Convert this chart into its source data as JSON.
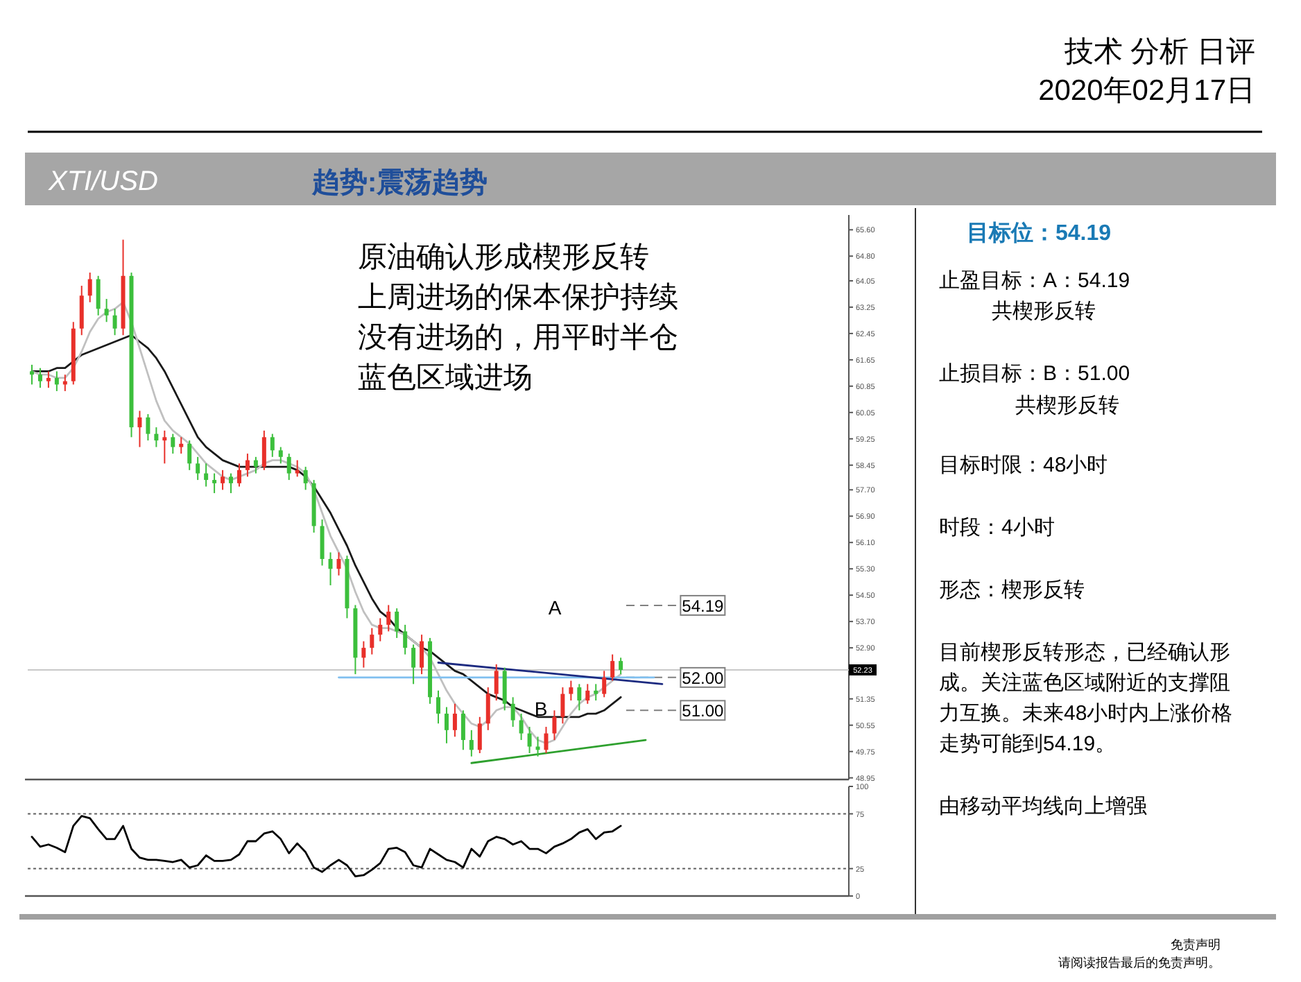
{
  "chart_data": [
    {
      "type": "candlestick",
      "categories": [
        null,
        null,
        null,
        null,
        null,
        null,
        null,
        null,
        null,
        null,
        null,
        null,
        null,
        null,
        null,
        null,
        null,
        null,
        null,
        null,
        null,
        null,
        null,
        null,
        null,
        null,
        null,
        null,
        null,
        null,
        null,
        null,
        null,
        null,
        null,
        null,
        null,
        null,
        null,
        null,
        null,
        null,
        null,
        null,
        null,
        null,
        null,
        null,
        null,
        null,
        null,
        null,
        null,
        null,
        null,
        null,
        null,
        null,
        null,
        null,
        null,
        null,
        null,
        null,
        null,
        null,
        null,
        null,
        null,
        null,
        null,
        null,
        null,
        null,
        null,
        null,
        null,
        null,
        null,
        null,
        null,
        null,
        null,
        null,
        null,
        null,
        null,
        null,
        null,
        null,
        null,
        null,
        null,
        null,
        null,
        null,
        null,
        null,
        null
      ],
      "ohlc": [
        [
          61.3,
          61.5,
          60.9,
          61.2
        ],
        [
          61.2,
          61.4,
          60.8,
          61.0
        ],
        [
          61.0,
          61.3,
          60.8,
          61.1
        ],
        [
          61.1,
          61.3,
          60.7,
          60.9
        ],
        [
          60.9,
          61.2,
          60.7,
          61.0
        ],
        [
          61.0,
          62.8,
          60.9,
          62.6
        ],
        [
          62.6,
          63.9,
          62.4,
          63.6
        ],
        [
          63.6,
          64.3,
          63.4,
          64.1
        ],
        [
          64.1,
          64.2,
          63.0,
          63.2
        ],
        [
          63.2,
          63.5,
          62.8,
          63.0
        ],
        [
          63.0,
          63.2,
          62.4,
          62.6
        ],
        [
          62.6,
          65.3,
          62.4,
          64.2
        ],
        [
          64.2,
          64.3,
          59.3,
          59.6
        ],
        [
          59.6,
          60.1,
          59.0,
          59.9
        ],
        [
          59.9,
          60.0,
          59.2,
          59.4
        ],
        [
          59.4,
          59.6,
          59.0,
          59.2
        ],
        [
          59.2,
          59.5,
          58.5,
          59.3
        ],
        [
          59.3,
          59.4,
          58.8,
          59.0
        ],
        [
          59.0,
          59.3,
          58.8,
          59.1
        ],
        [
          59.1,
          59.2,
          58.3,
          58.5
        ],
        [
          58.5,
          58.7,
          58.0,
          58.2
        ],
        [
          58.2,
          58.5,
          57.8,
          58.0
        ],
        [
          58.0,
          58.2,
          57.6,
          57.9
        ],
        [
          57.9,
          58.3,
          57.7,
          58.1
        ],
        [
          58.1,
          58.2,
          57.6,
          57.9
        ],
        [
          57.9,
          58.5,
          57.8,
          58.3
        ],
        [
          58.3,
          58.8,
          58.1,
          58.6
        ],
        [
          58.6,
          58.7,
          58.2,
          58.4
        ],
        [
          58.4,
          59.5,
          58.3,
          59.3
        ],
        [
          59.3,
          59.4,
          58.7,
          58.9
        ],
        [
          58.9,
          59.0,
          58.5,
          58.7
        ],
        [
          58.7,
          58.8,
          58.0,
          58.2
        ],
        [
          58.2,
          58.6,
          58.1,
          58.3
        ],
        [
          58.3,
          58.4,
          57.7,
          57.9
        ],
        [
          57.9,
          58.0,
          56.4,
          56.6
        ],
        [
          56.6,
          56.8,
          55.4,
          55.6
        ],
        [
          55.6,
          55.8,
          54.8,
          55.3
        ],
        [
          55.3,
          55.8,
          55.1,
          55.6
        ],
        [
          55.6,
          55.7,
          53.8,
          54.1
        ],
        [
          54.1,
          54.2,
          52.1,
          52.6
        ],
        [
          52.6,
          53.1,
          52.3,
          52.9
        ],
        [
          52.9,
          53.5,
          52.7,
          53.3
        ],
        [
          53.3,
          53.8,
          53.1,
          53.6
        ],
        [
          53.6,
          54.2,
          53.4,
          54.0
        ],
        [
          54.0,
          54.1,
          53.2,
          53.4
        ],
        [
          53.4,
          53.6,
          52.7,
          52.9
        ],
        [
          52.9,
          53.0,
          51.8,
          52.3
        ],
        [
          52.3,
          53.3,
          52.1,
          53.1
        ],
        [
          53.1,
          53.2,
          51.2,
          51.4
        ],
        [
          51.4,
          51.6,
          50.6,
          50.9
        ],
        [
          50.9,
          51.1,
          50.0,
          50.4
        ],
        [
          50.4,
          51.2,
          50.2,
          50.9
        ],
        [
          50.9,
          51.0,
          49.8,
          50.1
        ],
        [
          50.1,
          50.4,
          49.6,
          49.8
        ],
        [
          49.8,
          50.8,
          49.7,
          50.6
        ],
        [
          50.6,
          51.7,
          50.4,
          51.5
        ],
        [
          51.5,
          52.4,
          51.3,
          52.2
        ],
        [
          52.2,
          52.3,
          51.0,
          51.2
        ],
        [
          51.2,
          51.4,
          50.5,
          50.7
        ],
        [
          50.7,
          50.9,
          50.1,
          50.3
        ],
        [
          50.3,
          50.5,
          49.7,
          49.9
        ],
        [
          49.9,
          50.2,
          49.6,
          49.8
        ],
        [
          49.8,
          50.5,
          49.7,
          50.3
        ],
        [
          50.3,
          51.0,
          50.1,
          50.8
        ],
        [
          50.8,
          51.7,
          50.6,
          51.5
        ],
        [
          51.5,
          51.9,
          51.3,
          51.7
        ],
        [
          51.7,
          51.8,
          51.0,
          51.3
        ],
        [
          51.3,
          51.8,
          51.2,
          51.6
        ],
        [
          51.6,
          51.8,
          51.3,
          51.5
        ],
        [
          51.5,
          52.2,
          51.4,
          52.0
        ],
        [
          52.0,
          52.7,
          51.9,
          52.5
        ],
        [
          52.5,
          52.6,
          52.1,
          52.23
        ],
        null,
        null,
        null,
        null,
        null,
        null,
        null,
        null,
        null,
        null,
        null,
        null,
        null,
        null,
        null,
        null,
        null,
        null,
        null,
        null,
        null,
        null,
        null,
        null,
        null,
        null,
        null
      ],
      "series": [
        {
          "type": "line",
          "color": "#1a1a1a",
          "values": [
            61.3,
            61.3,
            61.3,
            61.4,
            61.4,
            61.6,
            61.8,
            61.9,
            62.0,
            62.1,
            62.2,
            62.3,
            62.4,
            62.2,
            62.0,
            61.7,
            61.3,
            60.8,
            60.3,
            59.8,
            59.3,
            59.0,
            58.8,
            58.6,
            58.5,
            58.4,
            58.4,
            58.4,
            58.4,
            58.4,
            58.4,
            58.4,
            58.3,
            58.1,
            57.8,
            57.4,
            57.0,
            56.5,
            56.0,
            55.4,
            54.9,
            54.4,
            54.0,
            53.8,
            53.5,
            53.3,
            53.1,
            52.9,
            52.8,
            52.6,
            52.4,
            52.2,
            52.1,
            51.9,
            51.7,
            51.5,
            51.4,
            51.3,
            51.1,
            51.0,
            50.9,
            50.8,
            50.8,
            50.8,
            50.8,
            50.8,
            50.8,
            50.9,
            50.9,
            51.0,
            51.2,
            51.4,
            null,
            null,
            null,
            null,
            null,
            null,
            null,
            null,
            null,
            null,
            null,
            null,
            null,
            null,
            null,
            null,
            null,
            null,
            null,
            null,
            null,
            null,
            null,
            null,
            null,
            null,
            null
          ]
        },
        {
          "type": "line",
          "color": "#c0c0c0",
          "values": [
            61.3,
            61.2,
            61.2,
            61.1,
            61.1,
            61.4,
            61.9,
            62.5,
            62.9,
            63.1,
            63.2,
            63.4,
            62.8,
            62.0,
            61.2,
            60.4,
            59.8,
            59.5,
            59.3,
            59.1,
            58.8,
            58.5,
            58.3,
            58.1,
            58.0,
            58.1,
            58.2,
            58.3,
            58.5,
            58.6,
            58.6,
            58.5,
            58.4,
            58.2,
            57.7,
            57.0,
            56.3,
            55.8,
            55.3,
            54.6,
            54.0,
            53.6,
            53.5,
            53.5,
            53.4,
            53.3,
            53.1,
            52.9,
            52.6,
            52.1,
            51.6,
            51.2,
            50.9,
            50.6,
            50.5,
            50.7,
            51.0,
            51.1,
            51.1,
            50.8,
            50.4,
            50.1,
            50.0,
            50.1,
            50.5,
            50.9,
            51.2,
            51.4,
            51.5,
            51.7,
            51.9,
            52.1,
            null,
            null,
            null,
            null,
            null,
            null,
            null,
            null,
            null,
            null,
            null,
            null,
            null,
            null,
            null,
            null,
            null,
            null,
            null,
            null,
            null,
            null,
            null,
            null,
            null,
            null,
            null
          ]
        },
        {
          "type": "line",
          "color": "#7fbfef",
          "values": [
            null,
            null,
            null,
            null,
            null,
            null,
            null,
            null,
            null,
            null,
            null,
            null,
            null,
            null,
            null,
            null,
            null,
            null,
            null,
            null,
            null,
            null,
            null,
            null,
            null,
            null,
            null,
            null,
            null,
            null,
            null,
            null,
            null,
            null,
            null,
            null,
            null,
            52.0,
            null,
            null,
            null,
            null,
            null,
            null,
            null,
            null,
            null,
            null,
            null,
            null,
            null,
            null,
            null,
            null,
            null,
            null,
            null,
            null,
            null,
            null,
            null,
            null,
            null,
            null,
            null,
            null,
            null,
            null,
            null,
            null,
            null,
            null,
            null,
            null,
            null,
            52.0,
            null,
            null,
            null,
            null,
            null,
            null,
            null,
            null,
            null,
            null,
            null,
            null,
            null,
            null,
            null,
            null,
            null,
            null,
            null,
            null,
            null,
            null,
            null
          ]
        },
        {
          "type": "line",
          "color": "#1c2a80",
          "values": [
            null,
            null,
            null,
            null,
            null,
            null,
            null,
            null,
            null,
            null,
            null,
            null,
            null,
            null,
            null,
            null,
            null,
            null,
            null,
            null,
            null,
            null,
            null,
            null,
            null,
            null,
            null,
            null,
            null,
            null,
            null,
            null,
            null,
            null,
            null,
            null,
            null,
            null,
            null,
            null,
            null,
            null,
            null,
            null,
            null,
            null,
            null,
            null,
            null,
            52.45,
            null,
            null,
            null,
            null,
            null,
            null,
            null,
            null,
            null,
            null,
            null,
            null,
            null,
            null,
            null,
            null,
            null,
            null,
            null,
            null,
            null,
            null,
            null,
            null,
            null,
            null,
            51.8,
            null,
            null,
            null,
            null,
            null,
            null,
            null,
            null,
            null,
            null,
            null,
            null,
            null,
            null,
            null,
            null,
            null,
            null,
            null,
            null,
            null,
            null
          ]
        },
        {
          "type": "line",
          "color": "#2ea02e",
          "values": [
            null,
            null,
            null,
            null,
            null,
            null,
            null,
            null,
            null,
            null,
            null,
            null,
            null,
            null,
            null,
            null,
            null,
            null,
            null,
            null,
            null,
            null,
            null,
            null,
            null,
            null,
            null,
            null,
            null,
            null,
            null,
            null,
            null,
            null,
            null,
            null,
            null,
            null,
            null,
            null,
            null,
            null,
            null,
            null,
            null,
            null,
            null,
            null,
            null,
            null,
            null,
            null,
            null,
            49.4,
            null,
            null,
            null,
            null,
            null,
            null,
            null,
            null,
            null,
            null,
            null,
            null,
            null,
            null,
            null,
            null,
            null,
            null,
            null,
            null,
            50.1,
            null,
            null,
            null,
            null,
            null,
            null,
            null,
            null,
            null,
            null,
            null,
            null,
            null,
            null,
            null,
            null,
            null,
            null,
            null,
            null,
            null,
            null,
            null,
            null
          ]
        }
      ],
      "ylim": [
        48.9,
        66.05
      ],
      "yticks": [
        {
          "value": 65.6,
          "label": "65.60"
        },
        {
          "value": 64.8,
          "label": "64.80"
        },
        {
          "value": 64.05,
          "label": "64.05"
        },
        {
          "value": 63.25,
          "label": "63.25"
        },
        {
          "value": 62.45,
          "label": "62.45"
        },
        {
          "value": 61.65,
          "label": "61.65"
        },
        {
          "value": 60.85,
          "label": "60.85"
        },
        {
          "value": 60.05,
          "label": "60.05"
        },
        {
          "value": 59.25,
          "label": "59.25"
        },
        {
          "value": 58.45,
          "label": "58.45"
        },
        {
          "value": 57.7,
          "label": "57.70"
        },
        {
          "value": 56.9,
          "label": "56.90"
        },
        {
          "value": 56.1,
          "label": "56.10"
        },
        {
          "value": 55.3,
          "label": "55.30"
        },
        {
          "value": 54.5,
          "label": "54.50"
        },
        {
          "value": 53.7,
          "label": "53.70"
        },
        {
          "value": 52.9,
          "label": "52.90"
        },
        {
          "value": 51.35,
          "label": "51.35"
        },
        {
          "value": 50.55,
          "label": "50.55"
        },
        {
          "value": 49.75,
          "label": "49.75"
        },
        {
          "value": 48.95,
          "label": "48.95"
        }
      ],
      "tick_labels": "y",
      "ref_lines": [
        {
          "axis": "y",
          "value": 52.23,
          "label": "52.23",
          "color": "#c8c8c8",
          "line_style": "solid"
        },
        {
          "axis": "y",
          "value": 54.19,
          "label": "54.19",
          "color": "#808080",
          "line_style": "dashed"
        },
        {
          "axis": "y",
          "value": 52.0,
          "label": "52.00",
          "color": "#808080",
          "line_style": "dashed"
        },
        {
          "axis": "y",
          "value": 51.0,
          "label": "51.00",
          "color": "#808080",
          "line_style": "dashed"
        }
      ],
      "annotations": [
        "XTI/USD",
        "趋势:震荡趋势",
        "原油确认形成楔形反转",
        "上周进场的保本保护持续",
        "没有进场的，用平时半仓",
        "蓝色区域进场",
        "A",
        "B"
      ]
    },
    {
      "type": "line",
      "categories": [
        null,
        null,
        null,
        null,
        null,
        null,
        null,
        null,
        null,
        null,
        null,
        null,
        null,
        null,
        null,
        null,
        null,
        null,
        null,
        null,
        null,
        null,
        null,
        null,
        null,
        null,
        null,
        null,
        null,
        null,
        null,
        null,
        null,
        null,
        null,
        null,
        null,
        null,
        null,
        null,
        null,
        null,
        null,
        null,
        null,
        null,
        null,
        null,
        null,
        null,
        null,
        null,
        null,
        null,
        null,
        null,
        null,
        null,
        null,
        null,
        null,
        null,
        null,
        null,
        null,
        null,
        null,
        null,
        null,
        null,
        null,
        null,
        null,
        null,
        null,
        null,
        null,
        null,
        null,
        null,
        null,
        null,
        null,
        null,
        null,
        null,
        null,
        null,
        null,
        null,
        null,
        null,
        null,
        null,
        null,
        null,
        null,
        null,
        null
      ],
      "color": "#000000",
      "values": [
        54,
        45,
        47,
        44,
        40,
        64,
        73,
        71,
        61,
        52,
        52,
        64,
        43,
        35,
        33,
        33,
        32,
        31,
        33,
        26,
        28,
        37,
        32,
        32,
        33,
        38,
        50,
        50,
        57,
        59,
        52,
        39,
        48,
        40,
        26,
        22,
        28,
        33,
        28,
        18,
        19,
        24,
        30,
        43,
        44,
        40,
        28,
        26,
        43,
        38,
        33,
        31,
        26,
        43,
        36,
        50,
        54,
        52,
        47,
        50,
        43,
        43,
        39,
        45,
        48,
        52,
        58,
        61,
        52,
        58,
        59,
        64,
        null,
        null,
        null,
        null,
        null,
        null,
        null,
        null,
        null,
        null,
        null,
        null,
        null,
        null,
        null,
        null,
        null,
        null,
        null,
        null,
        null,
        null,
        null,
        null,
        null,
        null,
        null
      ],
      "ylim": [
        0,
        100
      ],
      "yticks": [
        0,
        25,
        75,
        100
      ],
      "tick_labels": "y",
      "ref_lines": [
        {
          "axis": "y",
          "value": 25,
          "color": "#606060",
          "line_style": "dotted"
        },
        {
          "axis": "y",
          "value": 75,
          "color": "#606060",
          "line_style": "dotted"
        }
      ]
    },
    {
      "type": "other",
      "title": "目标位：54.19",
      "annotations": [
        "技术 分析 日评",
        "2020年02月17日",
        "止盈目标：A：54.19",
        "共楔形反转",
        "止损目标：B：51.00",
        "共楔形反转",
        "目标时限：48小时",
        "时段：4小时",
        "形态：楔形反转",
        "目前楔形反转形态，已经确认形成。关注蓝色区域附近的支撑阻力互换。未来48小时内上涨价格走势可能到54.19。",
        "由移动平均线向上增强",
        "免责声明",
        "请阅读报告最后的免责声明。"
      ]
    }
  ]
}
